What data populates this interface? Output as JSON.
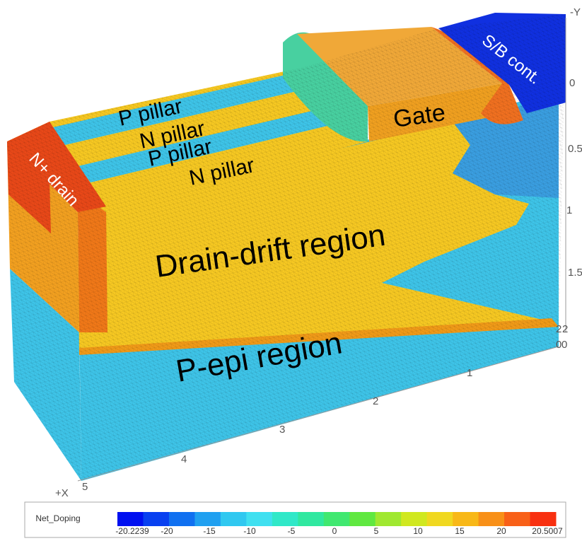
{
  "regions": [
    "P pillar",
    "N pillar",
    "P pillar",
    "N pillar",
    "N+ drain",
    "Gate",
    "S/B cont.",
    "Drain-drift region",
    "P-epi region"
  ],
  "y_axis": {
    "title": "-Y",
    "ticks": [
      "0",
      "0.5",
      "1",
      "1.5",
      "2"
    ]
  },
  "z_axis": {
    "ticks": [
      "2",
      "0"
    ]
  },
  "x_axis": {
    "title": "+X",
    "ticks": [
      "0",
      "1",
      "2",
      "3",
      "4",
      "5"
    ]
  },
  "colorbar": {
    "title": "Net_Doping",
    "ticks": [
      "-20.2239",
      "-20",
      "-15",
      "-10",
      "-5",
      "0",
      "5",
      "10",
      "15",
      "20",
      "20.5007"
    ]
  }
}
